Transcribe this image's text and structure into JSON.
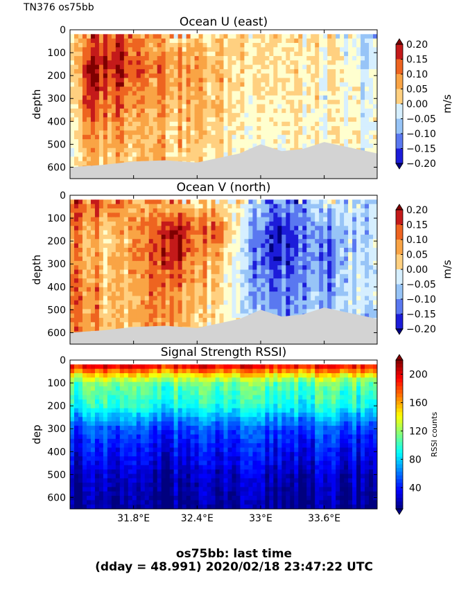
{
  "header": {
    "cruise_label": "TN376 os75bb"
  },
  "caption": {
    "line1": "os75bb: last time",
    "line2": "(dday = 48.991) 2020/02/18 23:47:22 UTC"
  },
  "colors": {
    "land": "#d3d3d3",
    "jet": [
      "#00007f",
      "#0000ff",
      "#007fff",
      "#00ffff",
      "#7fff7f",
      "#ffff00",
      "#ff7f00",
      "#ff0000",
      "#7f0000"
    ],
    "diverging": [
      "#1c1cd9",
      "#5a78f0",
      "#97c4f7",
      "#d6efff",
      "#ffffcf",
      "#ffd080",
      "#f9a445",
      "#ee6420",
      "#c41a1a"
    ]
  },
  "chart_data": [
    {
      "type": "heatmap",
      "title": "Ocean U (east)",
      "xlabel": "",
      "ylabel": "depth",
      "xlim": [
        31.2,
        34.1
      ],
      "ylim": [
        650,
        0
      ],
      "ytick_labels": [
        "0",
        "100",
        "200",
        "300",
        "400",
        "500",
        "600"
      ],
      "yticks": [
        0,
        100,
        200,
        300,
        400,
        500,
        600
      ],
      "xticks": [
        31.8,
        32.4,
        33.0,
        33.6
      ],
      "xtick_labels": [
        "",
        "",
        "",
        ""
      ],
      "colorbar": {
        "label": "m/s",
        "ticks": [
          0.2,
          0.15,
          0.1,
          0.05,
          0.0,
          -0.05,
          -0.1,
          -0.15,
          -0.2
        ],
        "tick_labels": [
          "0.20",
          "0.15",
          "0.10",
          "0.05",
          "0.00",
          "−0.05",
          "−0.10",
          "−0.15",
          "−0.20"
        ]
      },
      "profiles": [
        {
          "x": 31.25,
          "v": [
            0.05,
            0.06,
            0.05,
            0.04,
            0.02,
            0.01
          ]
        },
        {
          "x": 31.4,
          "v": [
            0.1,
            0.2,
            0.18,
            0.14,
            0.1,
            0.08
          ]
        },
        {
          "x": 31.55,
          "v": [
            0.18,
            0.21,
            0.17,
            0.13,
            0.1,
            0.06
          ]
        },
        {
          "x": 31.7,
          "v": [
            0.16,
            0.19,
            0.16,
            0.12,
            0.1,
            0.08
          ]
        },
        {
          "x": 31.85,
          "v": [
            0.12,
            0.16,
            0.13,
            0.1,
            0.08,
            0.06
          ]
        },
        {
          "x": 32.0,
          "v": [
            0.09,
            0.13,
            0.12,
            0.1,
            0.08,
            0.1
          ]
        },
        {
          "x": 32.2,
          "v": [
            0.06,
            0.1,
            0.09,
            0.07,
            0.06,
            0.04
          ]
        },
        {
          "x": 32.4,
          "v": [
            0.04,
            0.08,
            0.07,
            0.06,
            0.05,
            0.03
          ]
        },
        {
          "x": 32.6,
          "v": [
            0.03,
            0.06,
            0.05,
            0.05,
            0.03,
            0.02
          ]
        },
        {
          "x": 32.8,
          "v": [
            0.05,
            0.04,
            0.03,
            0.02,
            0.01,
            0.0
          ]
        },
        {
          "x": 33.0,
          "v": [
            0.04,
            0.03,
            0.03,
            0.02,
            0.01,
            0.0
          ]
        },
        {
          "x": 33.2,
          "v": [
            0.02,
            0.02,
            0.02,
            0.01,
            0.0,
            -0.01
          ]
        },
        {
          "x": 33.4,
          "v": [
            0.02,
            0.01,
            0.01,
            0.0,
            0.0,
            0.0
          ]
        },
        {
          "x": 33.6,
          "v": [
            0.01,
            0.0,
            0.0,
            -0.01,
            0.0,
            0.0
          ]
        },
        {
          "x": 33.8,
          "v": [
            -0.04,
            -0.02,
            -0.02,
            -0.03,
            -0.02,
            -0.01
          ]
        },
        {
          "x": 34.0,
          "v": [
            -0.07,
            -0.05,
            -0.03,
            -0.03,
            -0.02,
            -0.01
          ]
        }
      ],
      "bottom": [
        [
          31.2,
          600
        ],
        [
          31.5,
          590
        ],
        [
          31.8,
          575
        ],
        [
          32.1,
          570
        ],
        [
          32.4,
          580
        ],
        [
          32.6,
          560
        ],
        [
          32.8,
          540
        ],
        [
          33.0,
          500
        ],
        [
          33.2,
          530
        ],
        [
          33.4,
          520
        ],
        [
          33.6,
          490
        ],
        [
          33.8,
          510
        ],
        [
          34.0,
          530
        ],
        [
          34.1,
          540
        ]
      ]
    },
    {
      "type": "heatmap",
      "title": "Ocean V (north)",
      "xlabel": "",
      "ylabel": "depth",
      "xlim": [
        31.2,
        34.1
      ],
      "ylim": [
        650,
        0
      ],
      "ytick_labels": [
        "0",
        "100",
        "200",
        "300",
        "400",
        "500",
        "600"
      ],
      "yticks": [
        0,
        100,
        200,
        300,
        400,
        500,
        600
      ],
      "xticks": [
        31.8,
        32.4,
        33.0,
        33.6
      ],
      "xtick_labels": [
        "",
        "",
        "",
        ""
      ],
      "colorbar": {
        "label": "m/s",
        "ticks": [
          0.2,
          0.15,
          0.1,
          0.05,
          0.0,
          -0.05,
          -0.1,
          -0.15,
          -0.2
        ],
        "tick_labels": [
          "0.20",
          "0.15",
          "0.10",
          "0.05",
          "0.00",
          "−0.05",
          "−0.10",
          "−0.15",
          "−0.20"
        ]
      },
      "profiles": [
        {
          "x": 31.25,
          "v": [
            0.16,
            0.12,
            0.1,
            0.12,
            0.13,
            0.12
          ]
        },
        {
          "x": 31.4,
          "v": [
            0.14,
            0.1,
            0.08,
            0.1,
            0.12,
            0.11
          ]
        },
        {
          "x": 31.55,
          "v": [
            0.12,
            0.05,
            0.04,
            0.05,
            0.06,
            0.05
          ]
        },
        {
          "x": 31.7,
          "v": [
            0.1,
            0.08,
            0.08,
            0.07,
            0.06,
            0.05
          ]
        },
        {
          "x": 31.85,
          "v": [
            0.09,
            0.12,
            0.12,
            0.11,
            0.1,
            0.1
          ]
        },
        {
          "x": 32.0,
          "v": [
            0.08,
            0.13,
            0.14,
            0.12,
            0.1,
            0.1
          ]
        },
        {
          "x": 32.2,
          "v": [
            0.06,
            0.2,
            0.18,
            0.12,
            0.08,
            0.07
          ]
        },
        {
          "x": 32.4,
          "v": [
            0.05,
            0.12,
            0.1,
            0.08,
            0.07,
            0.05
          ]
        },
        {
          "x": 32.6,
          "v": [
            0.04,
            0.15,
            0.08,
            0.05,
            0.03,
            0.02
          ]
        },
        {
          "x": 32.8,
          "v": [
            0.0,
            -0.02,
            -0.04,
            -0.05,
            -0.04,
            -0.03
          ]
        },
        {
          "x": 33.0,
          "v": [
            -0.1,
            -0.15,
            -0.16,
            -0.14,
            -0.12,
            -0.1
          ]
        },
        {
          "x": 33.2,
          "v": [
            -0.12,
            -0.18,
            -0.17,
            -0.15,
            -0.12,
            -0.1
          ]
        },
        {
          "x": 33.4,
          "v": [
            -0.1,
            -0.12,
            -0.12,
            -0.1,
            -0.1,
            -0.08
          ]
        },
        {
          "x": 33.6,
          "v": [
            -0.08,
            -0.14,
            -0.16,
            -0.14,
            -0.12,
            -0.1
          ]
        },
        {
          "x": 33.8,
          "v": [
            -0.05,
            -0.08,
            -0.08,
            -0.07,
            -0.06,
            -0.05
          ]
        },
        {
          "x": 34.0,
          "v": [
            -0.07,
            -0.07,
            -0.06,
            -0.06,
            -0.05,
            -0.1
          ]
        }
      ],
      "bottom": [
        [
          31.2,
          600
        ],
        [
          31.5,
          590
        ],
        [
          31.8,
          575
        ],
        [
          32.1,
          570
        ],
        [
          32.4,
          580
        ],
        [
          32.6,
          560
        ],
        [
          32.8,
          540
        ],
        [
          33.0,
          500
        ],
        [
          33.2,
          530
        ],
        [
          33.4,
          520
        ],
        [
          33.6,
          490
        ],
        [
          33.8,
          510
        ],
        [
          34.0,
          530
        ],
        [
          34.1,
          540
        ]
      ]
    },
    {
      "type": "heatmap",
      "title": "Signal Strength RSSI)",
      "xlabel": "",
      "ylabel": "dep",
      "xlim": [
        31.2,
        34.1
      ],
      "ylim": [
        650,
        0
      ],
      "ytick_labels": [
        "0",
        "100",
        "200",
        "300",
        "400",
        "500",
        "600"
      ],
      "yticks": [
        0,
        100,
        200,
        300,
        400,
        500,
        600
      ],
      "xticks": [
        31.8,
        32.4,
        33.0,
        33.6
      ],
      "xtick_labels": [
        "31.8°E",
        "32.4°E",
        "33°E",
        "33.6°E"
      ],
      "colorbar": {
        "label": "RSSI counts",
        "range": [
          10,
          220
        ],
        "ticks": [
          200,
          160,
          120,
          80,
          40
        ],
        "tick_labels": [
          "200",
          "160",
          "120",
          "80",
          "40"
        ]
      },
      "profile_depths": [
        30,
        60,
        100,
        150,
        200,
        250,
        300,
        350,
        400,
        450,
        500,
        550,
        650
      ],
      "profile": [
        190,
        150,
        110,
        100,
        92,
        70,
        50,
        42,
        35,
        30,
        22,
        18,
        12
      ],
      "bottom": []
    }
  ]
}
